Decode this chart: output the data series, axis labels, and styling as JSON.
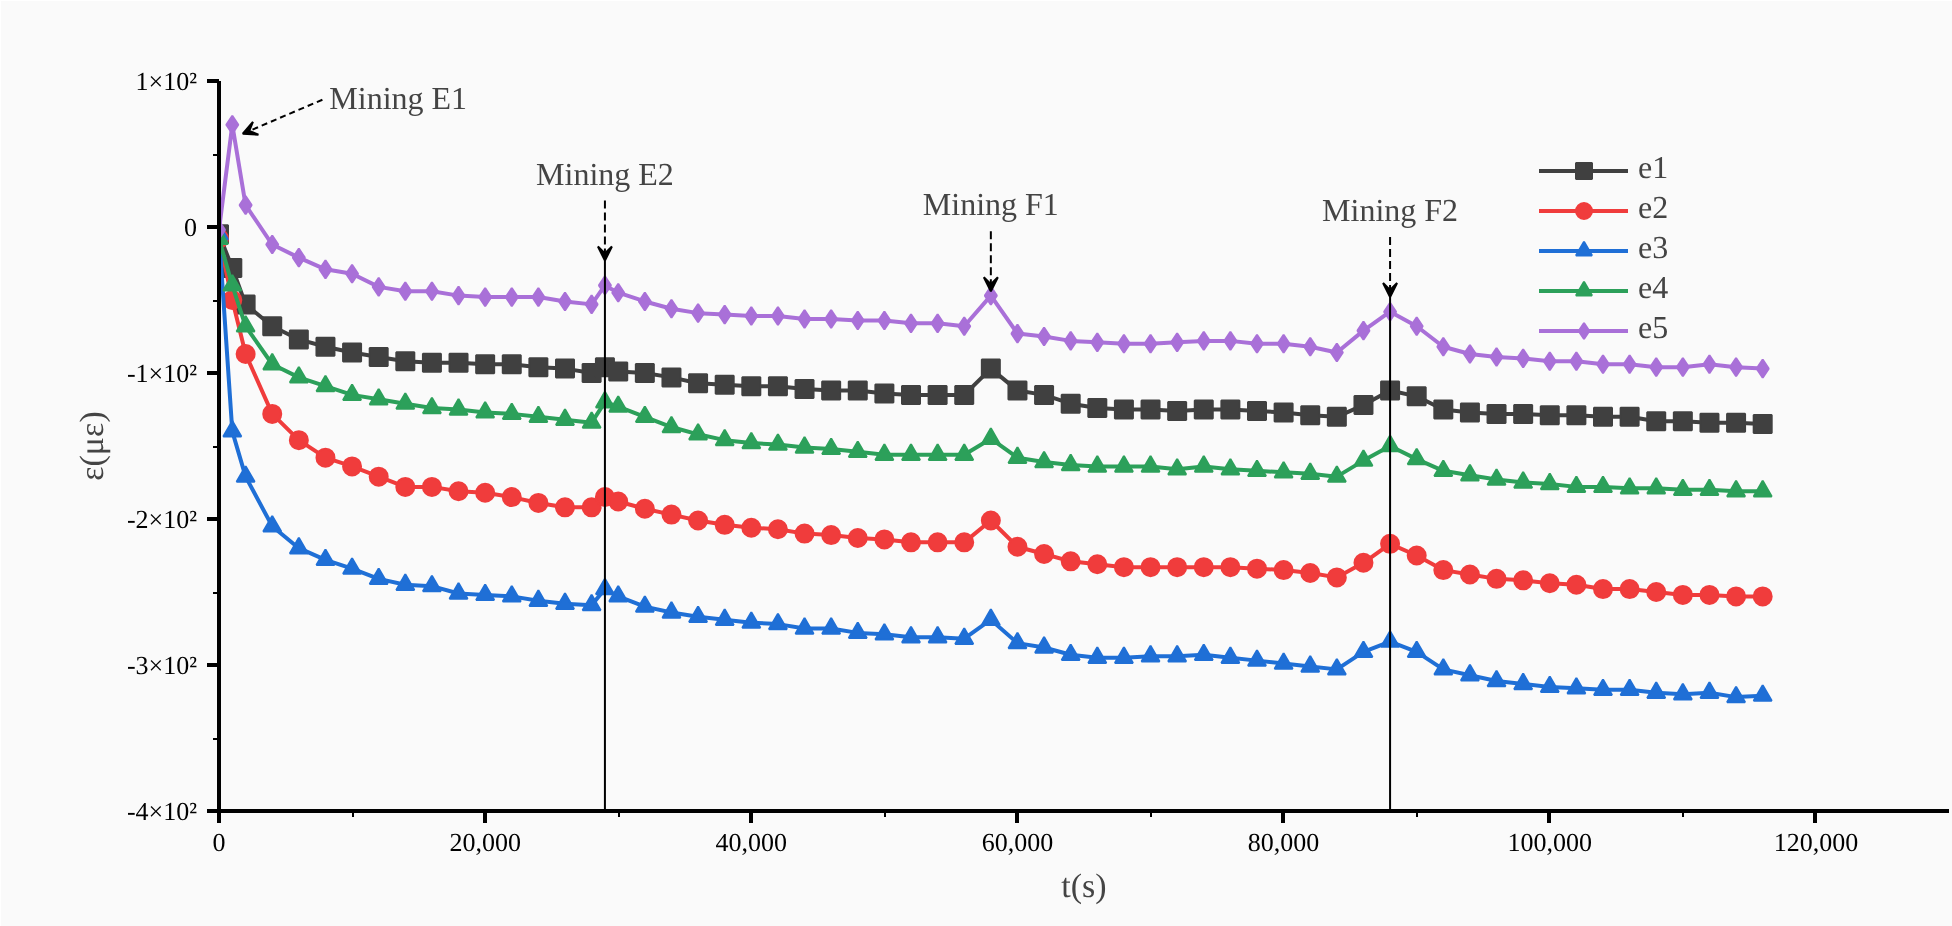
{
  "chart_data": {
    "type": "line",
    "xlabel": "t(s)",
    "ylabel": "ε(με)",
    "x": [
      0,
      1000,
      2000,
      4000,
      6000,
      8000,
      10000,
      12000,
      14000,
      16000,
      18000,
      20000,
      22000,
      24000,
      26000,
      28000,
      29000,
      30000,
      32000,
      34000,
      36000,
      38000,
      40000,
      42000,
      44000,
      46000,
      48000,
      50000,
      52000,
      54000,
      56000,
      58000,
      60000,
      62000,
      64000,
      66000,
      68000,
      70000,
      72000,
      74000,
      76000,
      78000,
      80000,
      82000,
      84000,
      86000,
      88000,
      90000,
      92000,
      94000,
      96000,
      98000,
      100000,
      102000,
      104000,
      106000,
      108000,
      110000,
      112000,
      114000,
      116000
    ],
    "series": [
      {
        "name": "e1",
        "color": "#404040",
        "marker": "square",
        "values": [
          -5,
          -28,
          -53,
          -68,
          -77,
          -82,
          -86,
          -89,
          -92,
          -93,
          -93,
          -94,
          -94,
          -96,
          -97,
          -100,
          -96,
          -99,
          -100,
          -103,
          -107,
          -108,
          -109,
          -109,
          -111,
          -112,
          -112,
          -114,
          -115,
          -115,
          -115,
          -97,
          -112,
          -115,
          -121,
          -124,
          -125,
          -125,
          -126,
          -125,
          -125,
          -126,
          -127,
          -129,
          -130,
          -122,
          -112,
          -116,
          -125,
          -127,
          -128,
          -128,
          -129,
          -129,
          -130,
          -130,
          -133,
          -133,
          -134,
          -134,
          -135
        ]
      },
      {
        "name": "e2",
        "color": "#f03c3c",
        "marker": "circle",
        "values": [
          -8,
          -50,
          -87,
          -128,
          -146,
          -158,
          -164,
          -171,
          -178,
          -178,
          -181,
          -182,
          -185,
          -189,
          -192,
          -192,
          -185,
          -188,
          -193,
          -197,
          -201,
          -204,
          -206,
          -207,
          -210,
          -211,
          -213,
          -214,
          -216,
          -216,
          -216,
          -201,
          -219,
          -224,
          -229,
          -231,
          -233,
          -233,
          -233,
          -233,
          -233,
          -234,
          -235,
          -237,
          -240,
          -230,
          -217,
          -225,
          -235,
          -238,
          -241,
          -242,
          -244,
          -245,
          -248,
          -248,
          -250,
          -252,
          -252,
          -253,
          -253
        ]
      },
      {
        "name": "e3",
        "color": "#1f6fd6",
        "marker": "triangle",
        "values": [
          -5,
          -140,
          -171,
          -205,
          -220,
          -228,
          -234,
          -241,
          -245,
          -246,
          -251,
          -252,
          -253,
          -256,
          -258,
          -259,
          -248,
          -253,
          -260,
          -264,
          -267,
          -269,
          -271,
          -272,
          -275,
          -275,
          -278,
          -279,
          -281,
          -281,
          -282,
          -269,
          -285,
          -288,
          -293,
          -295,
          -295,
          -294,
          -294,
          -293,
          -295,
          -297,
          -299,
          -301,
          -303,
          -291,
          -284,
          -291,
          -303,
          -307,
          -311,
          -313,
          -315,
          -316,
          -317,
          -317,
          -319,
          -320,
          -319,
          -322,
          -321
        ]
      },
      {
        "name": "e4",
        "color": "#2ca05a",
        "marker": "triangle",
        "values": [
          -8,
          -40,
          -68,
          -94,
          -103,
          -109,
          -115,
          -118,
          -121,
          -124,
          -125,
          -127,
          -128,
          -130,
          -132,
          -134,
          -120,
          -123,
          -130,
          -137,
          -142,
          -146,
          -148,
          -149,
          -151,
          -152,
          -154,
          -156,
          -156,
          -156,
          -156,
          -145,
          -158,
          -161,
          -163,
          -164,
          -164,
          -164,
          -166,
          -164,
          -166,
          -167,
          -168,
          -169,
          -171,
          -160,
          -150,
          -159,
          -167,
          -170,
          -173,
          -175,
          -176,
          -178,
          -178,
          -179,
          -179,
          -180,
          -180,
          -181,
          -181
        ]
      },
      {
        "name": "e5",
        "color": "#a970d8",
        "marker": "diamond",
        "values": [
          -2,
          70,
          15,
          -12,
          -21,
          -29,
          -32,
          -41,
          -44,
          -44,
          -47,
          -48,
          -48,
          -48,
          -51,
          -53,
          -40,
          -45,
          -51,
          -56,
          -59,
          -60,
          -61,
          -61,
          -63,
          -63,
          -64,
          -64,
          -66,
          -66,
          -68,
          -47,
          -73,
          -75,
          -78,
          -79,
          -80,
          -80,
          -79,
          -78,
          -78,
          -80,
          -80,
          -82,
          -86,
          -71,
          -58,
          -68,
          -82,
          -87,
          -89,
          -90,
          -92,
          -92,
          -94,
          -94,
          -96,
          -96,
          -94,
          -96,
          -97
        ]
      }
    ],
    "xlim": [
      0,
      130000
    ],
    "xticks": [
      {
        "value": 0,
        "label": "0"
      },
      {
        "value": 20000,
        "label": "20,000"
      },
      {
        "value": 40000,
        "label": "40,000"
      },
      {
        "value": 60000,
        "label": "60,000"
      },
      {
        "value": 80000,
        "label": "80,000"
      },
      {
        "value": 100000,
        "label": "100,000"
      },
      {
        "value": 120000,
        "label": "120,000"
      }
    ],
    "ylim": [
      -400,
      100
    ],
    "yticks": [
      {
        "value": -400,
        "label": "-4×10²"
      },
      {
        "value": -300,
        "label": "-3×10²"
      },
      {
        "value": -200,
        "label": "-2×10²"
      },
      {
        "value": -100,
        "label": "-1×10²"
      },
      {
        "value": 0,
        "label": "0"
      },
      {
        "value": 100,
        "label": "1×10²"
      }
    ],
    "ref_lines": [
      {
        "axis": "x",
        "value": 29000,
        "color": "#000000"
      },
      {
        "axis": "x",
        "value": 88000,
        "color": "#000000"
      }
    ],
    "annotations": [
      {
        "text": "Mining E1",
        "x": 1400,
        "y": 68
      },
      {
        "text": "Mining E2",
        "x": 29000,
        "y": -23
      },
      {
        "text": "Mining F1",
        "x": 58000,
        "y": -44
      },
      {
        "text": "Mining F2",
        "x": 88000,
        "y": -48
      }
    ],
    "legend": "top right",
    "grid": false,
    "line_style": "solid"
  }
}
